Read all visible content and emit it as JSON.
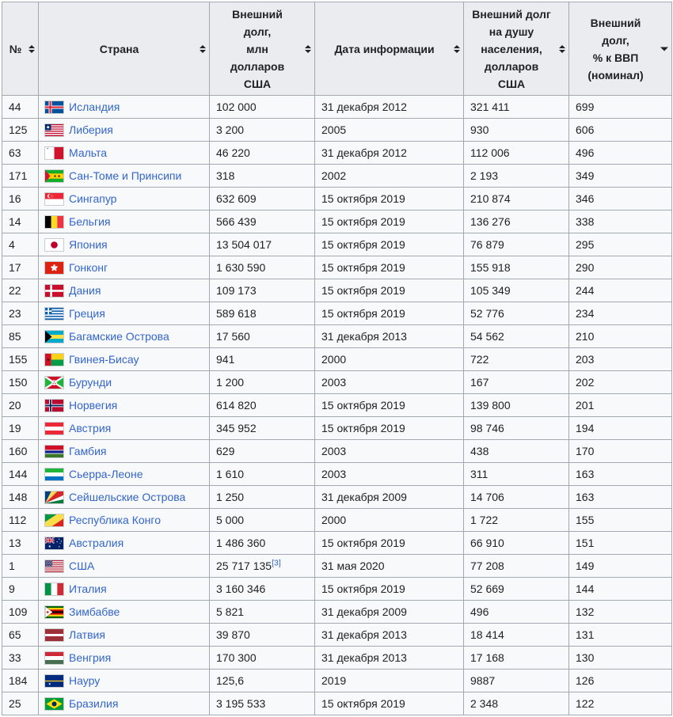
{
  "colors": {
    "link": "#3366cc",
    "header_bg": "#eaecf0",
    "cell_bg": "#f8f9fa",
    "border": "#a2a9b1",
    "text": "#202122"
  },
  "table": {
    "headers": [
      {
        "id": "rank",
        "label": "№",
        "sort": "both"
      },
      {
        "id": "country",
        "label": "Страна",
        "sort": "both"
      },
      {
        "id": "debt",
        "label": "Внешний\nдолг,\nмлн\nдолларов\nСША",
        "sort": "both"
      },
      {
        "id": "date",
        "label": "Дата информации",
        "sort": "both"
      },
      {
        "id": "per-capita",
        "label": "Внешний долг\nна душу\nнаселения,\nдолларов\nСША",
        "sort": "both"
      },
      {
        "id": "gdp-percent",
        "label": "Внешний\nдолг,\n% к ВВП\n(номинал)",
        "sort": "desc"
      }
    ],
    "rows": [
      {
        "rank": "44",
        "flag": "iceland",
        "country": "Исландия",
        "debt": "102 000",
        "date": "31 декабря 2012",
        "per_capita": "321 411",
        "gdp_percent": "699"
      },
      {
        "rank": "125",
        "flag": "liberia",
        "country": "Либерия",
        "debt": "3 200",
        "date": "2005",
        "per_capita": "930",
        "gdp_percent": "606"
      },
      {
        "rank": "63",
        "flag": "malta",
        "country": "Мальта",
        "debt": "46 220",
        "date": "31 декабря 2012",
        "per_capita": "112 006",
        "gdp_percent": "496"
      },
      {
        "rank": "171",
        "flag": "sao-tome",
        "country": "Сан-Томе и Принсипи",
        "debt": "318",
        "date": "2002",
        "per_capita": "2 193",
        "gdp_percent": "349"
      },
      {
        "rank": "16",
        "flag": "singapore",
        "country": "Сингапур",
        "debt": "632 609",
        "date": "15 октября 2019",
        "per_capita": "210 874",
        "gdp_percent": "346"
      },
      {
        "rank": "14",
        "flag": "belgium",
        "country": "Бельгия",
        "debt": "566 439",
        "date": "15 октября 2019",
        "per_capita": "136 276",
        "gdp_percent": "338"
      },
      {
        "rank": "4",
        "flag": "japan",
        "country": "Япония",
        "debt": "13 504 017",
        "date": "15 октября 2019",
        "per_capita": "76 879",
        "gdp_percent": "295"
      },
      {
        "rank": "17",
        "flag": "hong-kong",
        "country": "Гонконг",
        "debt": "1 630 590",
        "date": "15 октября 2019",
        "per_capita": "155 918",
        "gdp_percent": "290"
      },
      {
        "rank": "22",
        "flag": "denmark",
        "country": "Дания",
        "debt": "109 173",
        "date": "15 октября 2019",
        "per_capita": "105 349",
        "gdp_percent": "244"
      },
      {
        "rank": "23",
        "flag": "greece",
        "country": "Греция",
        "debt": "589 618",
        "date": "15 октября 2019",
        "per_capita": "52 776",
        "gdp_percent": "234"
      },
      {
        "rank": "85",
        "flag": "bahamas",
        "country": "Багамские Острова",
        "debt": "17 560",
        "date": "31 декабря 2013",
        "per_capita": "54 562",
        "gdp_percent": "210"
      },
      {
        "rank": "155",
        "flag": "guinea-bissau",
        "country": "Гвинея-Бисау",
        "debt": "941",
        "date": "2000",
        "per_capita": "722",
        "gdp_percent": "203"
      },
      {
        "rank": "150",
        "flag": "burundi",
        "country": "Бурунди",
        "debt": "1 200",
        "date": "2003",
        "per_capita": "167",
        "gdp_percent": "202"
      },
      {
        "rank": "20",
        "flag": "norway",
        "country": "Норвегия",
        "debt": "614 820",
        "date": "15 октября 2019",
        "per_capita": "139 800",
        "gdp_percent": "201"
      },
      {
        "rank": "19",
        "flag": "austria",
        "country": "Австрия",
        "debt": "345 952",
        "date": "15 октября 2019",
        "per_capita": "98 746",
        "gdp_percent": "194"
      },
      {
        "rank": "160",
        "flag": "gambia",
        "country": "Гамбия",
        "debt": "629",
        "date": "2003",
        "per_capita": "438",
        "gdp_percent": "170"
      },
      {
        "rank": "144",
        "flag": "sierra-leone",
        "country": "Сьерра-Леоне",
        "debt": "1 610",
        "date": "2003",
        "per_capita": "311",
        "gdp_percent": "163"
      },
      {
        "rank": "148",
        "flag": "seychelles",
        "country": "Сейшельские Острова",
        "debt": "1 250",
        "date": "31 декабря 2009",
        "per_capita": "14 706",
        "gdp_percent": "163"
      },
      {
        "rank": "112",
        "flag": "congo",
        "country": "Республика Конго",
        "debt": "5 000",
        "date": "2000",
        "per_capita": "1 722",
        "gdp_percent": "155"
      },
      {
        "rank": "13",
        "flag": "australia",
        "country": "Австралия",
        "debt": "1 486 360",
        "date": "15 октября 2019",
        "per_capita": "66 910",
        "gdp_percent": "151"
      },
      {
        "rank": "1",
        "flag": "usa",
        "country": "США",
        "debt": "25 717 135",
        "debt_ref": "[3]",
        "date": "31 мая 2020",
        "per_capita": "77 208",
        "gdp_percent": "149"
      },
      {
        "rank": "9",
        "flag": "italy",
        "country": "Италия",
        "debt": "3 160 346",
        "date": "15 октября 2019",
        "per_capita": "52 669",
        "gdp_percent": "144"
      },
      {
        "rank": "109",
        "flag": "zimbabwe",
        "country": "Зимбабве",
        "debt": "5 821",
        "date": "31 декабря 2009",
        "per_capita": "496",
        "gdp_percent": "132"
      },
      {
        "rank": "65",
        "flag": "latvia",
        "country": "Латвия",
        "debt": "39 870",
        "date": "31 декабря 2013",
        "per_capita": "18 414",
        "gdp_percent": "131"
      },
      {
        "rank": "33",
        "flag": "hungary",
        "country": "Венгрия",
        "debt": "170 300",
        "date": "31 декабря 2013",
        "per_capita": "17 168",
        "gdp_percent": "130"
      },
      {
        "rank": "184",
        "flag": "nauru",
        "country": "Науру",
        "debt": "125,6",
        "date": "2019",
        "per_capita": "9887",
        "gdp_percent": "126"
      },
      {
        "rank": "25",
        "flag": "brazil",
        "country": "Бразилия",
        "debt": "3 195 533",
        "date": "15 октября 2019",
        "per_capita": "2 348",
        "gdp_percent": "122"
      }
    ]
  }
}
